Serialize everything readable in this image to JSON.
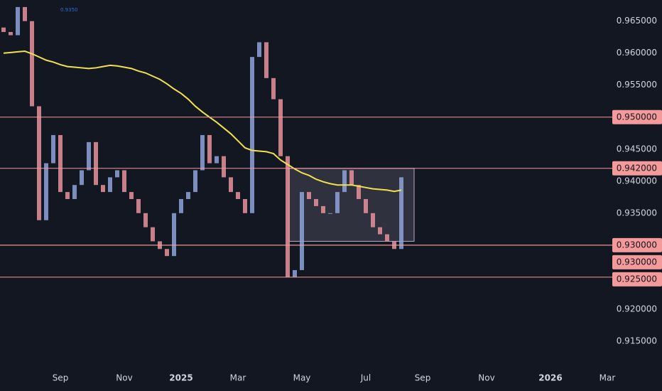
{
  "chart_data": {
    "type": "candlestick",
    "annotation": "0.9350",
    "categories": [
      null,
      null,
      null,
      null,
      null,
      null,
      null,
      null,
      null,
      null,
      null,
      null,
      null,
      null,
      null,
      null,
      null,
      null,
      null,
      null,
      null,
      null,
      null,
      null,
      null,
      null,
      null,
      null,
      null,
      null,
      null,
      null,
      null,
      null,
      null,
      null,
      null,
      null,
      null,
      null,
      null,
      null,
      null,
      null,
      null,
      null,
      null,
      null,
      null,
      null,
      null,
      null,
      null,
      null,
      null,
      null,
      null
    ],
    "open": [
      0.964,
      0.9633,
      0.9628,
      0.9672,
      0.965,
      0.9517,
      0.9339,
      0.9428,
      0.9472,
      0.9383,
      0.9372,
      0.9394,
      0.9417,
      0.9461,
      0.9394,
      0.9383,
      0.9406,
      0.9417,
      0.9383,
      0.9372,
      0.935,
      0.9328,
      0.9306,
      0.9294,
      0.9283,
      0.935,
      0.9372,
      0.9383,
      0.9417,
      0.9472,
      0.9428,
      0.9439,
      0.9406,
      0.9383,
      0.9372,
      0.935,
      0.9594,
      0.9617,
      0.9561,
      0.9528,
      0.9439,
      0.925,
      0.9261,
      0.9383,
      0.9372,
      0.9361,
      0.935,
      0.935,
      0.9383,
      0.9417,
      0.9394,
      0.9372,
      0.935,
      0.9328,
      0.9317,
      0.9306,
      0.9294
    ],
    "close": [
      0.9633,
      0.9628,
      0.9672,
      0.965,
      0.9517,
      0.9339,
      0.9428,
      0.9472,
      0.9383,
      0.9372,
      0.9394,
      0.9417,
      0.9461,
      0.9394,
      0.9383,
      0.9406,
      0.9417,
      0.9383,
      0.9372,
      0.935,
      0.9328,
      0.9306,
      0.9294,
      0.9283,
      0.935,
      0.9372,
      0.9383,
      0.9417,
      0.9472,
      0.9428,
      0.9439,
      0.9406,
      0.9383,
      0.9372,
      0.935,
      0.9594,
      0.9617,
      0.9561,
      0.9528,
      0.9439,
      0.925,
      0.9261,
      0.9383,
      0.9372,
      0.9361,
      0.935,
      0.935,
      0.9383,
      0.9417,
      0.9394,
      0.9372,
      0.935,
      0.9328,
      0.9317,
      0.9306,
      0.9294,
      0.9406
    ],
    "up_color": "#8fa3d9",
    "down_color": "#e7929c",
    "ma": {
      "color": "#f2e14c",
      "values": [
        0.96,
        0.9601,
        0.9602,
        0.9603,
        0.9599,
        0.9594,
        0.9589,
        0.9586,
        0.9582,
        0.9579,
        0.9578,
        0.9577,
        0.9576,
        0.9577,
        0.9579,
        0.9581,
        0.958,
        0.9578,
        0.9576,
        0.9572,
        0.9569,
        0.9564,
        0.9559,
        0.9552,
        0.9544,
        0.9537,
        0.9528,
        0.9517,
        0.9508,
        0.95,
        0.9492,
        0.9483,
        0.9474,
        0.9463,
        0.9452,
        0.9448,
        0.9447,
        0.9446,
        0.9443,
        0.9433,
        0.9426,
        0.9419,
        0.9413,
        0.9409,
        0.9403,
        0.9399,
        0.9396,
        0.9394,
        0.9394,
        0.9394,
        0.9392,
        0.939,
        0.9388,
        0.9387,
        0.9386,
        0.9384,
        0.9386
      ]
    },
    "levels": [
      {
        "value": 0.95,
        "label": "0.950000"
      },
      {
        "value": 0.942,
        "label": "0.942000"
      },
      {
        "value": 0.93,
        "label": "0.930000"
      },
      {
        "value": 0.93,
        "label": "0.930000"
      },
      {
        "value": 0.925,
        "label": "0.925000"
      }
    ],
    "level_color": "#f49a9a",
    "box": [
      0.942,
      0.9306
    ],
    "xlim": [
      -0.5,
      85.5
    ],
    "xticks": [
      {
        "value": 8,
        "label": "Sep"
      },
      {
        "value": 17,
        "label": "Nov"
      },
      {
        "value": 25,
        "label": "2025"
      },
      {
        "value": 33,
        "label": "Mar"
      },
      {
        "value": 42,
        "label": "May"
      },
      {
        "value": 51,
        "label": "Jul"
      },
      {
        "value": 59,
        "label": "Sep"
      },
      {
        "value": 68,
        "label": "Nov"
      },
      {
        "value": 77,
        "label": "2026"
      },
      {
        "value": 85,
        "label": "Mar"
      }
    ],
    "ylim": [
      0.9111,
      0.9683
    ],
    "yticks": [
      {
        "value": 0.965,
        "label": "0.965000"
      },
      {
        "value": 0.96,
        "label": "0.960000"
      },
      {
        "value": 0.955,
        "label": "0.955000"
      },
      {
        "value": 0.945,
        "label": "0.945000"
      },
      {
        "value": 0.94,
        "label": "0.940000"
      },
      {
        "value": 0.935,
        "label": "0.935000"
      },
      {
        "value": 0.92,
        "label": "0.920000"
      },
      {
        "value": 0.915,
        "label": "0.915000"
      }
    ]
  }
}
